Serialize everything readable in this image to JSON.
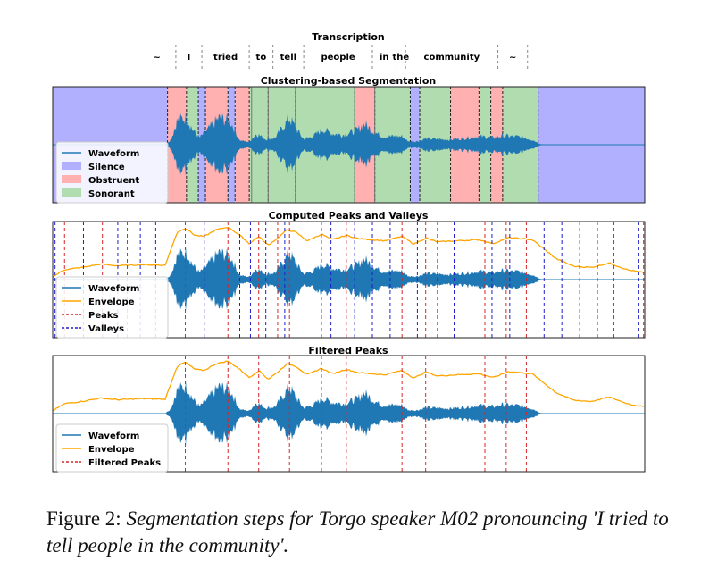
{
  "figure": {
    "caption_label": "Figure 2:",
    "caption_text": "Segmentation steps for Torgo speaker M02 pronouncing 'I tried to tell people in the community'.",
    "colors": {
      "waveform": "#1f77b4",
      "envelope": "#ffa500",
      "peaks": "#d62728",
      "valleys": "#1f1fcc",
      "silence": "#b0b0ff",
      "obstruent": "#ffb0b0",
      "sonorant": "#b0dcb0"
    }
  },
  "chart_data": [
    {
      "type": "table",
      "title": "Transcription",
      "words": [
        "~",
        "I",
        "tried",
        "to",
        "tell",
        "people",
        "in",
        "the",
        "community",
        "~"
      ],
      "boundaries_s": [
        0.72,
        1.04,
        1.26,
        1.66,
        1.86,
        2.12,
        2.7,
        2.9,
        2.98,
        3.76,
        4.01
      ],
      "xlim": [
        0,
        5.0
      ]
    },
    {
      "type": "area",
      "title": "Clustering-based Segmentation",
      "legend": [
        "Waveform",
        "Silence",
        "Obstruent",
        "Sonorant"
      ],
      "legend_position": "center-left",
      "xlim": [
        0,
        5.0
      ],
      "segments": [
        {
          "start": 0.0,
          "end": 0.97,
          "label": "Silence"
        },
        {
          "start": 0.97,
          "end": 1.13,
          "label": "Obstruent"
        },
        {
          "start": 1.13,
          "end": 1.23,
          "label": "Sonorant"
        },
        {
          "start": 1.23,
          "end": 1.29,
          "label": "Silence"
        },
        {
          "start": 1.29,
          "end": 1.48,
          "label": "Obstruent"
        },
        {
          "start": 1.48,
          "end": 1.54,
          "label": "Silence"
        },
        {
          "start": 1.54,
          "end": 1.66,
          "label": "Obstruent"
        },
        {
          "start": 1.66,
          "end": 1.82,
          "label": "Sonorant"
        },
        {
          "start": 1.82,
          "end": 2.05,
          "label": "Sonorant"
        },
        {
          "start": 2.05,
          "end": 2.55,
          "label": "Sonorant"
        },
        {
          "start": 2.55,
          "end": 2.72,
          "label": "Obstruent"
        },
        {
          "start": 2.72,
          "end": 3.02,
          "label": "Sonorant"
        },
        {
          "start": 3.02,
          "end": 3.1,
          "label": "Silence"
        },
        {
          "start": 3.1,
          "end": 3.36,
          "label": "Sonorant"
        },
        {
          "start": 3.36,
          "end": 3.6,
          "label": "Obstruent"
        },
        {
          "start": 3.6,
          "end": 3.7,
          "label": "Sonorant"
        },
        {
          "start": 3.7,
          "end": 3.8,
          "label": "Obstruent"
        },
        {
          "start": 3.8,
          "end": 4.1,
          "label": "Sonorant"
        },
        {
          "start": 4.1,
          "end": 5.0,
          "label": "Silence"
        }
      ],
      "dividers_s": [
        1.68,
        1.82,
        2.05,
        2.55,
        2.72
      ]
    },
    {
      "type": "line",
      "title": "Computed Peaks and Valleys",
      "legend": [
        "Waveform",
        "Envelope",
        "Peaks",
        "Valleys"
      ],
      "legend_position": "lower-left",
      "xlim": [
        0,
        5.0
      ],
      "peaks_s": [
        0.1,
        0.42,
        0.63,
        1.12,
        1.48,
        1.74,
        1.9,
        2.0,
        2.27,
        2.48,
        2.95,
        3.15,
        3.65,
        3.83,
        4.0,
        4.45,
        4.74,
        4.99
      ],
      "valleys_s": [
        0.02,
        0.26,
        0.55,
        0.74,
        0.87,
        1.28,
        1.58,
        1.67,
        1.8,
        1.96,
        2.35,
        2.55,
        2.7,
        2.85,
        3.08,
        3.25,
        3.39,
        3.71,
        3.86,
        4.15,
        4.3,
        4.6,
        4.95
      ]
    },
    {
      "type": "line",
      "title": "Filtered Peaks",
      "legend": [
        "Waveform",
        "Envelope",
        "Filtered Peaks"
      ],
      "legend_position": "lower-left",
      "xlim": [
        0,
        5.0
      ],
      "filtered_peaks_s": [
        1.12,
        1.48,
        1.74,
        2.0,
        2.27,
        2.48,
        2.95,
        3.15,
        3.65,
        3.83,
        4.0
      ]
    }
  ]
}
